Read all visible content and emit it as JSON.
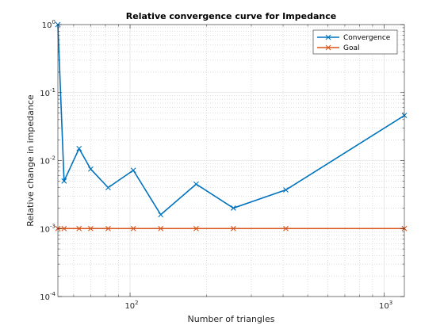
{
  "chart_data": {
    "type": "line",
    "title": "Relative convergence curve for Impedance",
    "xlabel": "Number of triangles",
    "ylabel": "Relative change in impedance",
    "xscale": "log",
    "yscale": "log",
    "xlim": [
      52,
      1200
    ],
    "ylim": [
      0.0001,
      1
    ],
    "x_ticks": [
      {
        "value": 100,
        "base": "10",
        "exp": "2"
      },
      {
        "value": 1000,
        "base": "10",
        "exp": "3"
      }
    ],
    "y_ticks": [
      {
        "value": 0.0001,
        "base": "10",
        "exp": "-4"
      },
      {
        "value": 0.001,
        "base": "10",
        "exp": "-3"
      },
      {
        "value": 0.01,
        "base": "10",
        "exp": "-2"
      },
      {
        "value": 0.1,
        "base": "10",
        "exp": "-1"
      },
      {
        "value": 1,
        "base": "10",
        "exp": "0"
      }
    ],
    "grid": true,
    "minor_grid": true,
    "legend_position": "top-right",
    "series": [
      {
        "name": "Convergence",
        "color": "#0072BD",
        "marker": "x",
        "x": [
          52,
          55,
          63,
          70,
          82,
          103,
          132,
          182,
          255,
          410,
          1200
        ],
        "y": [
          1.0,
          0.005,
          0.015,
          0.0075,
          0.004,
          0.0072,
          0.0016,
          0.0045,
          0.002,
          0.0037,
          0.046
        ]
      },
      {
        "name": "Goal",
        "color": "#D95319",
        "marker": "x",
        "x": [
          52,
          55,
          63,
          70,
          82,
          103,
          132,
          182,
          255,
          410,
          1200
        ],
        "y": [
          0.001,
          0.001,
          0.001,
          0.001,
          0.001,
          0.001,
          0.001,
          0.001,
          0.001,
          0.001,
          0.001
        ]
      }
    ]
  }
}
